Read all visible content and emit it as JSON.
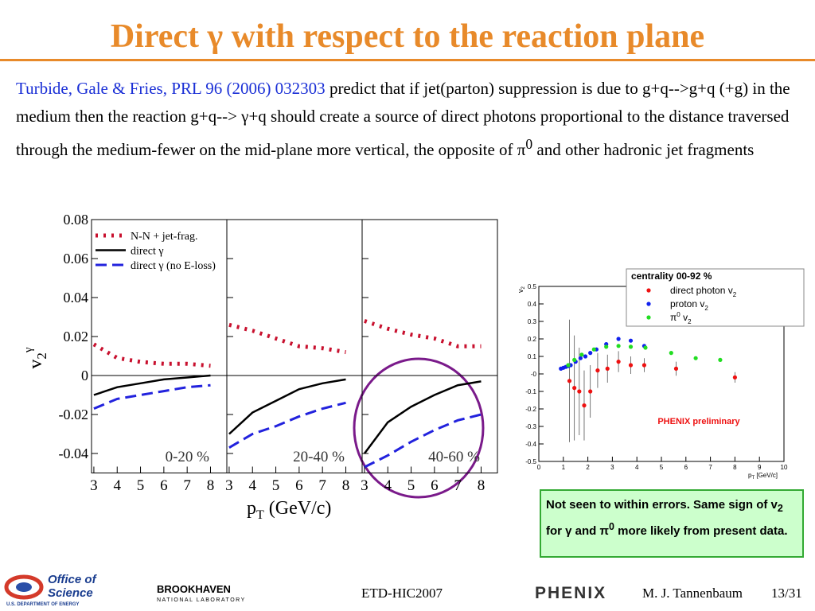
{
  "title": "Direct γ with respect to the reaction plane",
  "paragraph": {
    "citation": "Turbide, Gale & Fries, PRL 96 (2006) 032303",
    "text_1": " predict that if jet(parton) suppression is due to g+q-->g+q (+g) in the medium then the reaction g+q--> γ+q should create a source of direct photons proportional to the distance traversed through the medium-fewer on the mid-plane more vertical, the opposite of π",
    "sup": "0",
    "text_2": " and other hadronic jet fragments"
  },
  "left_chart": {
    "type": "line",
    "y_label": {
      "base": "v",
      "sub": "2",
      "sup": "γ"
    },
    "x_label": {
      "base": "p",
      "sub": "T",
      "rest": " (GeV/c)"
    },
    "xlim": [
      2.9,
      8.7
    ],
    "xticks": [
      3,
      4,
      5,
      6,
      7,
      8
    ],
    "ylim": [
      -0.05,
      0.08
    ],
    "yticks": [
      -0.04,
      -0.02,
      0,
      0.02,
      0.04,
      0.06,
      0.08
    ],
    "x": [
      3,
      4,
      5,
      6,
      7,
      8
    ],
    "series": [
      {
        "name": "N-N + jet-frag.",
        "color": "#c8102e",
        "style": "dotted"
      },
      {
        "name": "direct γ",
        "color": "#000000",
        "style": "solid"
      },
      {
        "name": "direct γ (no E-loss)",
        "color": "#2222dd",
        "style": "dashed"
      }
    ],
    "panels": [
      {
        "label": "0-20 %",
        "series": [
          {
            "values": [
              0.016,
              0.009,
              0.007,
              0.006,
              0.006,
              0.005
            ]
          },
          {
            "values": [
              -0.01,
              -0.006,
              -0.004,
              -0.002,
              -0.001,
              0
            ]
          },
          {
            "values": [
              -0.017,
              -0.012,
              -0.01,
              -0.008,
              -0.006,
              -0.005
            ]
          }
        ]
      },
      {
        "label": "20-40 %",
        "series": [
          {
            "values": [
              0.026,
              0.023,
              0.019,
              0.015,
              0.014,
              0.012
            ]
          },
          {
            "values": [
              -0.03,
              -0.019,
              -0.013,
              -0.007,
              -0.004,
              -0.002
            ]
          },
          {
            "values": [
              -0.037,
              -0.03,
              -0.026,
              -0.021,
              -0.017,
              -0.014
            ]
          }
        ]
      },
      {
        "label": "40-60 %",
        "series": [
          {
            "values": [
              0.028,
              0.024,
              0.021,
              0.019,
              0.015,
              0.015
            ]
          },
          {
            "values": [
              -0.04,
              -0.024,
              -0.016,
              -0.01,
              -0.005,
              -0.003
            ]
          },
          {
            "values": [
              -0.047,
              -0.041,
              -0.034,
              -0.028,
              -0.023,
              -0.02
            ]
          }
        ]
      }
    ]
  },
  "right_chart": {
    "type": "scatter",
    "y_label": {
      "base": "v",
      "sub": "2"
    },
    "x_label": {
      "base": "p",
      "sub": "T",
      "rest": " [GeV/c]"
    },
    "legend_title": "centrality 00-92 %",
    "xlim": [
      0,
      10
    ],
    "xticks": [
      0,
      1,
      2,
      3,
      4,
      5,
      6,
      7,
      8,
      9,
      10
    ],
    "ylim": [
      -0.5,
      0.5
    ],
    "yticks": [
      -0.5,
      -0.4,
      -0.3,
      -0.2,
      -0.1,
      {
        "value": 0,
        "label": "-0"
      },
      0.1,
      0.2,
      0.3,
      0.4,
      0.5
    ],
    "annotation": "PHENIX preliminary",
    "series": [
      {
        "name": "direct photon v",
        "name_sub": "2",
        "color": "#ee1111",
        "x": [
          1.25,
          1.45,
          1.65,
          1.85,
          2.1,
          2.4,
          2.8,
          3.25,
          3.75,
          4.3,
          5.6,
          8.0
        ],
        "values": [
          -0.04,
          -0.08,
          -0.1,
          -0.18,
          -0.1,
          0.02,
          0.03,
          0.07,
          0.05,
          0.05,
          0.03,
          -0.02
        ],
        "errors": [
          0.35,
          0.3,
          0.25,
          0.2,
          0.15,
          0.1,
          0.08,
          0.06,
          0.05,
          0.04,
          0.04,
          0.03
        ]
      },
      {
        "name": "proton v",
        "name_sub": "2",
        "color": "#1122ee",
        "x": [
          0.9,
          1.0,
          1.1,
          1.2,
          1.3,
          1.5,
          1.7,
          1.9,
          2.1,
          2.35,
          2.75,
          3.25,
          3.75,
          4.3
        ],
        "values": [
          0.03,
          0.035,
          0.04,
          0.045,
          0.05,
          0.07,
          0.09,
          0.1,
          0.12,
          0.14,
          0.17,
          0.2,
          0.19,
          0.16
        ]
      },
      {
        "name": "π",
        "name_sup": "0",
        "name_rest": " v",
        "name_sub": "2",
        "color": "#22dd22",
        "x": [
          1.2,
          1.45,
          1.75,
          2.25,
          2.75,
          3.25,
          3.75,
          4.35,
          5.4,
          6.4,
          7.4
        ],
        "values": [
          0.05,
          0.08,
          0.11,
          0.14,
          0.155,
          0.16,
          0.155,
          0.15,
          0.12,
          0.09,
          0.08
        ]
      }
    ]
  },
  "note": {
    "t1": "Not seen to within errors.   Same sign of v",
    "sub": "2",
    "t2": " for γ and π",
    "sup": "0",
    "t3": " more likely from present data."
  },
  "footer": {
    "office": "Office of",
    "science": "Science",
    "doe": "U.S. DEPARTMENT OF ENERGY",
    "bnl": "BROOKHAVEN",
    "bnl_sub": "NATIONAL LABORATORY",
    "conference": "ETD-HIC2007",
    "phenix": "PHENIX",
    "author": "M. J. Tannenbaum",
    "page": "13/31"
  }
}
